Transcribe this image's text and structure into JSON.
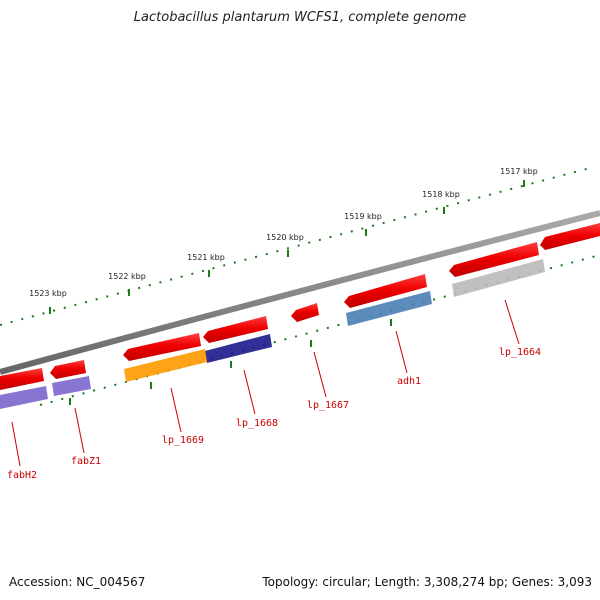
{
  "title": "Lactobacillus plantarum WCFS1, complete genome",
  "footer": {
    "accession": "Accession: NC_004567",
    "summary": "Topology: circular; Length: 3,308,274 bp; Genes: 3,093"
  },
  "ticks": [
    {
      "label": "1517 kbp"
    },
    {
      "label": "1518 kbp"
    },
    {
      "label": "1519 kbp"
    },
    {
      "label": "1520 kbp"
    },
    {
      "label": "1521 kbp"
    },
    {
      "label": "1522 kbp"
    },
    {
      "label": "1523 kbp"
    }
  ],
  "genes": [
    {
      "label": "lp_1664",
      "color": "#b9b9b9"
    },
    {
      "label": "adh1",
      "color": "#4a7fb5"
    },
    {
      "label": "lp_1667",
      "color": "#ff0000"
    },
    {
      "label": "lp_1668",
      "color": "#1a1a8c"
    },
    {
      "label": "lp_1669",
      "color": "#ff9900"
    },
    {
      "label": "fabZ1",
      "color": "#7a66cc"
    },
    {
      "label": "fabH2",
      "color": "#7a66cc"
    }
  ],
  "colors": {
    "cds": "#ff0000",
    "backbone": "#888888",
    "tick": "#1a7a1a",
    "label": "#cc0000"
  }
}
